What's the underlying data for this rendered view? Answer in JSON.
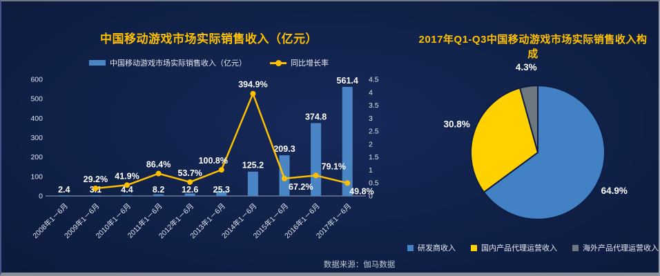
{
  "footer": {
    "source_note": "数据来源：伽马数据"
  },
  "theme": {
    "background": "#102148",
    "title_color": "#ffc000",
    "bar_color": "#4a86c6",
    "line_color": "#ffc000",
    "label_color": "#ffffff",
    "axis_text_color": "#dfe4ee",
    "axis_line_color": "#9aa6bd",
    "legend_text_color": "#e8ecf5",
    "slice_stroke": "#0d1c42"
  },
  "chart_data": [
    {
      "id": "china-mobile-game-revenue",
      "type": "bar+line",
      "title": "中国移动游戏市场实际销售收入（亿元）",
      "grid": false,
      "legend_position": "top",
      "categories": [
        "2008年1－6月",
        "2009年1－6月",
        "2010年1－6月",
        "2011年1－6月",
        "2012年1－6月",
        "2013年1－6月",
        "2014年1－6月",
        "2015年1－6月",
        "2016年1－6月",
        "2017年1－6月"
      ],
      "series": [
        {
          "name": "中国移动游戏市场实际销售收入（亿元）",
          "type": "bar",
          "axis": "left",
          "color": "#4a86c6",
          "values": [
            2.4,
            3.1,
            4.4,
            8.2,
            12.6,
            25.3,
            125.2,
            209.3,
            374.8,
            561.4
          ],
          "labels": [
            "2.4",
            "3.1",
            "4.4",
            "8.2",
            "12.6",
            "25.3",
            "125.2",
            "209.3",
            "374.8",
            "561.4"
          ]
        },
        {
          "name": "同比增长率",
          "type": "line",
          "axis": "right",
          "color": "#ffc000",
          "start_index": 1,
          "values": [
            0.292,
            0.419,
            0.864,
            0.537,
            1.008,
            3.949,
            0.672,
            0.791,
            0.498
          ],
          "labels": [
            "29.2%",
            "41.9%",
            "86.4%",
            "53.7%",
            "100.8%",
            "394.9%",
            "67.2%",
            "79.1%",
            "49.8%"
          ],
          "labels_below_indices": [
            6,
            8
          ]
        }
      ],
      "axes": {
        "left": {
          "min": 0,
          "max": 600,
          "ticks": [
            "0",
            "100",
            "200",
            "300",
            "400",
            "500",
            "600"
          ]
        },
        "right": {
          "min": 0,
          "max": 4.5,
          "ticks": [
            "0",
            "0.5",
            "1",
            "1.5",
            "2",
            "2.5",
            "3",
            "3.5",
            "4",
            "4.5"
          ]
        }
      }
    },
    {
      "id": "2017-q1q3-revenue-composition",
      "type": "pie",
      "title": "2017年Q1-Q3中国移动游戏市场实际销售收入构成",
      "start_angle": "top",
      "direction": "clockwise",
      "legend_position": "bottom",
      "slices": [
        {
          "label": "研发商收入",
          "value": 64.9,
          "display": "64.9%",
          "color": "#4181c4"
        },
        {
          "label": "国内产品代理运营收入",
          "value": 30.8,
          "display": "30.8%",
          "color": "#ffd100"
        },
        {
          "label": "海外产品代理运营收入",
          "value": 4.3,
          "display": "4.3%",
          "color": "#6e7880"
        }
      ]
    }
  ]
}
